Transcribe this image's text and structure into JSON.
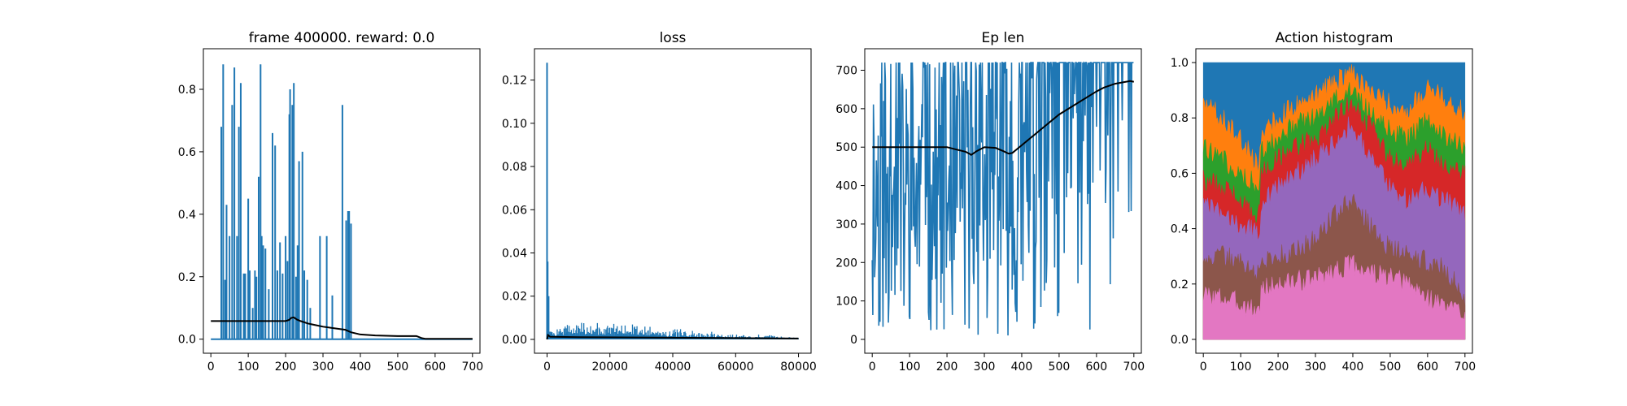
{
  "figure": {
    "background": "#ffffff"
  },
  "colors": {
    "primary": "#1f77b4",
    "moving_average": "#000000",
    "actions": [
      "#1f77b4",
      "#ff7f0e",
      "#2ca02c",
      "#d62728",
      "#9467bd",
      "#8c564b",
      "#e377c2"
    ]
  },
  "chart_data": [
    {
      "type": "line",
      "title": "frame 400000. reward: 0.0",
      "xlabel": "",
      "ylabel": "",
      "xlim": [
        -20,
        720
      ],
      "ylim": [
        -0.045,
        0.93
      ],
      "xticks": [
        0,
        100,
        200,
        300,
        400,
        500,
        600,
        700
      ],
      "yticks": [
        0.0,
        0.2,
        0.4,
        0.6,
        0.8
      ],
      "xtick_labels": [
        "0",
        "100",
        "200",
        "300",
        "400",
        "500",
        "600",
        "700"
      ],
      "ytick_labels": [
        "0.0",
        "0.2",
        "0.4",
        "0.6",
        "0.8"
      ],
      "series": [
        {
          "kind": "spikes",
          "baseline": 0,
          "x_end": 700,
          "x": [
            28,
            33,
            38,
            42,
            50,
            57,
            63,
            70,
            75,
            80,
            88,
            92,
            100,
            104,
            112,
            118,
            122,
            128,
            133,
            136,
            140,
            146,
            155,
            165,
            172,
            178,
            185,
            192,
            200,
            205,
            210,
            212,
            218,
            222,
            228,
            232,
            236,
            245,
            250,
            258,
            266,
            292,
            310,
            325,
            352,
            362,
            367,
            370,
            375
          ],
          "values": [
            0.68,
            0.88,
            0.19,
            0.43,
            0.33,
            0.75,
            0.87,
            0.33,
            0.68,
            0.82,
            0.21,
            0.21,
            0.45,
            0.22,
            0.1,
            0.22,
            0.2,
            0.52,
            0.88,
            0.33,
            0.3,
            0.29,
            0.16,
            0.66,
            0.62,
            0.22,
            0.31,
            0.21,
            0.33,
            0.25,
            0.72,
            0.8,
            0.75,
            0.82,
            0.2,
            0.3,
            0.57,
            0.6,
            0.22,
            0.19,
            0.1,
            0.33,
            0.33,
            0.14,
            0.75,
            0.38,
            0.41,
            0.41,
            0.37
          ]
        },
        {
          "name": "",
          "kind": "line",
          "x": [
            0,
            100,
            200,
            210,
            215,
            222,
            230,
            240,
            260,
            280,
            300,
            330,
            360,
            375,
            400,
            440,
            500,
            550,
            565,
            575,
            600,
            700
          ],
          "values": [
            0.058,
            0.058,
            0.058,
            0.062,
            0.068,
            0.07,
            0.063,
            0.058,
            0.05,
            0.045,
            0.04,
            0.035,
            0.03,
            0.022,
            0.015,
            0.012,
            0.01,
            0.01,
            0.003,
            0.001,
            0.001,
            0.001
          ]
        }
      ]
    },
    {
      "type": "line",
      "title": "loss",
      "xlabel": "",
      "ylabel": "",
      "xlim": [
        -4000,
        84000
      ],
      "ylim": [
        -0.0064,
        0.1345
      ],
      "xticks": [
        0,
        20000,
        40000,
        60000,
        80000
      ],
      "yticks": [
        0.0,
        0.02,
        0.04,
        0.06,
        0.08,
        0.1,
        0.12
      ],
      "xtick_labels": [
        "0",
        "20000",
        "40000",
        "60000",
        "80000"
      ],
      "ytick_labels": [
        "0.00",
        "0.02",
        "0.04",
        "0.06",
        "0.08",
        "0.10",
        "0.12"
      ],
      "series": [
        {
          "kind": "noise",
          "baseline": 0,
          "spikes": [
            [
              0,
              0.128
            ],
            [
              200,
              0.036
            ],
            [
              500,
              0.02
            ]
          ],
          "x": [
            0,
            1000,
            5000,
            10000,
            15000,
            20000,
            30000,
            40000,
            50000,
            60000,
            70000,
            80000
          ],
          "values": [
            0.004,
            0.006,
            0.008,
            0.009,
            0.0095,
            0.009,
            0.008,
            0.0055,
            0.0042,
            0.0033,
            0.0022,
            0.0015
          ]
        },
        {
          "name": "",
          "kind": "line",
          "x": [
            0,
            300,
            1000,
            10000,
            40000,
            80000
          ],
          "values": [
            0.0,
            0.002,
            0.0012,
            0.001,
            0.0008,
            0.0004
          ]
        }
      ]
    },
    {
      "type": "line",
      "title": "Ep len",
      "xlabel": "",
      "ylabel": "",
      "xlim": [
        -20,
        720
      ],
      "ylim": [
        -36,
        756
      ],
      "xticks": [
        0,
        100,
        200,
        300,
        400,
        500,
        600,
        700
      ],
      "yticks": [
        0,
        100,
        200,
        300,
        400,
        500,
        600,
        700
      ],
      "xtick_labels": [
        "0",
        "100",
        "200",
        "300",
        "400",
        "500",
        "600",
        "700"
      ],
      "ytick_labels": [
        "0",
        "100",
        "200",
        "300",
        "400",
        "500",
        "600",
        "700"
      ],
      "series": [
        {
          "kind": "episodes",
          "top": 720,
          "x": [
            0,
            100,
            200,
            300,
            400,
            500,
            550,
            600,
            650,
            700
          ],
          "drop_density": [
            0.85,
            0.8,
            0.82,
            0.8,
            0.7,
            0.5,
            0.4,
            0.3,
            0.2,
            0.15
          ],
          "min_drop": [
            10,
            10,
            10,
            10,
            10,
            10,
            10,
            10,
            10,
            370
          ]
        },
        {
          "name": "",
          "kind": "line",
          "x": [
            0,
            100,
            200,
            220,
            250,
            265,
            280,
            300,
            330,
            350,
            365,
            375,
            400,
            450,
            500,
            550,
            600,
            620,
            650,
            690,
            700
          ],
          "values": [
            500,
            500,
            500,
            495,
            488,
            480,
            490,
            500,
            498,
            490,
            483,
            485,
            505,
            545,
            585,
            615,
            645,
            655,
            665,
            672,
            670
          ]
        }
      ]
    },
    {
      "type": "area",
      "title": "Action histogram",
      "xlabel": "",
      "ylabel": "",
      "xlim": [
        -20,
        720
      ],
      "ylim": [
        -0.05,
        1.05
      ],
      "xticks": [
        0,
        100,
        200,
        300,
        400,
        500,
        600,
        700
      ],
      "yticks": [
        0.0,
        0.2,
        0.4,
        0.6,
        0.8,
        1.0
      ],
      "xtick_labels": [
        "0",
        "100",
        "200",
        "300",
        "400",
        "500",
        "600",
        "700"
      ],
      "ytick_labels": [
        "0.0",
        "0.2",
        "0.4",
        "0.6",
        "0.8",
        "1.0"
      ],
      "stacked": true,
      "x": [
        0,
        50,
        100,
        150,
        155,
        200,
        250,
        300,
        350,
        400,
        450,
        500,
        550,
        600,
        650,
        700
      ],
      "boundaries": [
        [
          0.16,
          0.15,
          0.13,
          0.1,
          0.18,
          0.2,
          0.21,
          0.22,
          0.25,
          0.27,
          0.24,
          0.22,
          0.2,
          0.15,
          0.12,
          0.1
        ],
        [
          0.3,
          0.3,
          0.28,
          0.23,
          0.28,
          0.3,
          0.32,
          0.36,
          0.45,
          0.5,
          0.4,
          0.33,
          0.3,
          0.28,
          0.25,
          0.15
        ],
        [
          0.48,
          0.45,
          0.42,
          0.38,
          0.5,
          0.55,
          0.6,
          0.65,
          0.72,
          0.78,
          0.65,
          0.55,
          0.5,
          0.55,
          0.5,
          0.45
        ],
        [
          0.58,
          0.55,
          0.5,
          0.45,
          0.6,
          0.65,
          0.7,
          0.72,
          0.8,
          0.86,
          0.76,
          0.65,
          0.62,
          0.7,
          0.62,
          0.6
        ],
        [
          0.7,
          0.65,
          0.6,
          0.55,
          0.68,
          0.72,
          0.78,
          0.8,
          0.86,
          0.9,
          0.82,
          0.75,
          0.72,
          0.8,
          0.72,
          0.7
        ],
        [
          0.86,
          0.8,
          0.72,
          0.62,
          0.75,
          0.8,
          0.85,
          0.88,
          0.93,
          0.96,
          0.9,
          0.85,
          0.82,
          0.92,
          0.86,
          0.82
        ],
        [
          1.0,
          1.0,
          1.0,
          1.0,
          1.0,
          1.0,
          1.0,
          1.0,
          1.0,
          1.0,
          1.0,
          1.0,
          1.0,
          1.0,
          1.0,
          1.0
        ]
      ]
    }
  ]
}
